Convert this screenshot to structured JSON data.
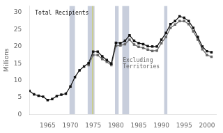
{
  "chart_data": {
    "type": "line",
    "ylabel": "Millions",
    "xlim": [
      1961,
      2002
    ],
    "ylim": [
      0,
      32
    ],
    "xticks": [
      1965,
      1970,
      1975,
      1980,
      1985,
      1990,
      1995,
      2000
    ],
    "yticks": [
      0,
      5,
      10,
      15,
      20,
      25,
      30
    ],
    "grid": false,
    "shaded_ranges": {
      "color": "#c8cedc",
      "ranges": [
        [
          1969.8,
          1971.0
        ],
        [
          1973.8,
          1975.3
        ],
        [
          1979.8,
          1980.6
        ],
        [
          1981.4,
          1982.9
        ],
        [
          1990.6,
          1991.3
        ]
      ]
    },
    "vline": {
      "x": 1974.9,
      "color": "#cccc44"
    },
    "series": [
      {
        "name": "Total Recipients",
        "color": "#111111",
        "marker": "square",
        "x": [
          1961,
          1962,
          1963,
          1964,
          1965,
          1966,
          1967,
          1968,
          1969,
          1970,
          1971,
          1972,
          1973,
          1974,
          1975,
          1976,
          1977,
          1978,
          1979,
          1980,
          1981,
          1982,
          1983,
          1984,
          1985,
          1986,
          1987,
          1988,
          1989,
          1990,
          1991,
          1992,
          1993,
          1994,
          1995,
          1996,
          1997,
          1998,
          1999,
          2000,
          2001
        ],
        "values": [
          6.9,
          5.9,
          5.5,
          5.2,
          4.2,
          4.5,
          5.4,
          5.8,
          6.1,
          8.2,
          11.0,
          13.0,
          14.1,
          15.1,
          18.5,
          18.5,
          17.1,
          16.0,
          15.0,
          21.1,
          21.0,
          21.7,
          23.3,
          21.7,
          21.0,
          20.7,
          20.1,
          20.0,
          20.0,
          22.0,
          24.0,
          26.6,
          27.5,
          28.9,
          28.5,
          27.5,
          25.5,
          22.8,
          20.0,
          18.6,
          18.3
        ]
      },
      {
        "name": "Excluding\nTerritories",
        "color": "#666666",
        "marker": "square",
        "x": [
          1974,
          1975,
          1976,
          1977,
          1978,
          1979,
          1980,
          1981,
          1982,
          1983,
          1984,
          1985,
          1986,
          1987,
          1988,
          1989,
          1990,
          1991,
          1992,
          1993,
          1994,
          1995,
          1996,
          1997,
          1998,
          1999,
          2000,
          2001
        ],
        "values": [
          14.5,
          17.5,
          17.5,
          16.3,
          15.5,
          14.5,
          20.2,
          20.3,
          20.7,
          22.0,
          20.6,
          19.9,
          19.6,
          19.1,
          18.7,
          18.8,
          21.0,
          22.8,
          25.5,
          26.5,
          27.5,
          27.5,
          26.6,
          24.5,
          22.0,
          19.2,
          17.5,
          17.0
        ]
      }
    ]
  }
}
